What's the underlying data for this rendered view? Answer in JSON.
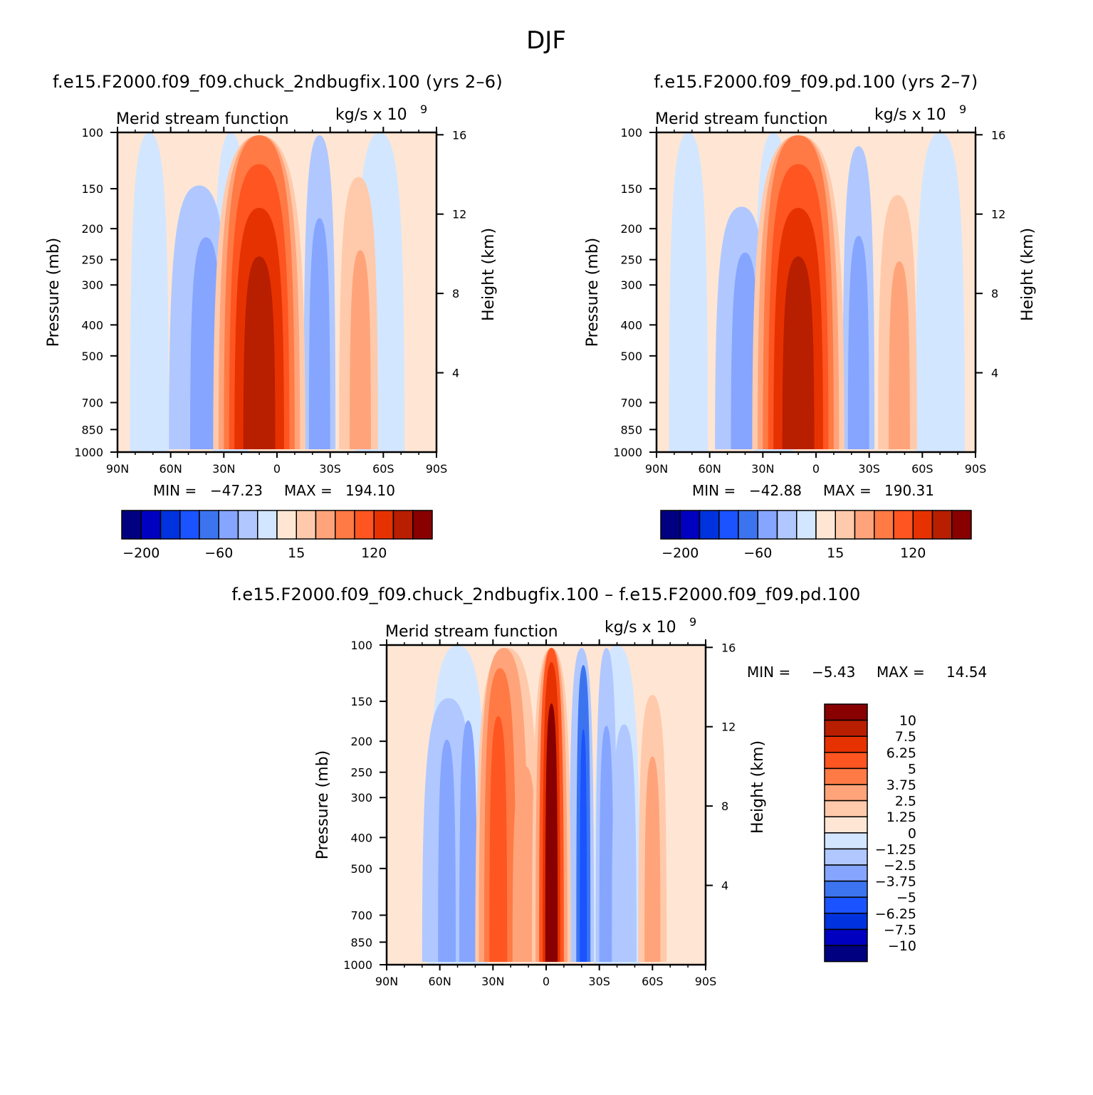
{
  "figure": {
    "title": "DJF"
  },
  "palette": [
    "#000080",
    "#0000c0",
    "#0033dd",
    "#1a53ff",
    "#3c74f0",
    "#85a5ff",
    "#b0c8ff",
    "#d3e6ff",
    "#ffe6d4",
    "#ffcaab",
    "#ffa47a",
    "#ff7a45",
    "#ff5520",
    "#e63200",
    "#b81e00",
    "#880000"
  ],
  "chart_data": [
    {
      "type": "heatmap",
      "case_title": "f.e15.F2000.f09_f09.chuck_2ndbugfix.100 (yrs 2–6)",
      "left_string": "Merid stream function",
      "units": "kg/s x 10",
      "units_exponent": "9",
      "ylabel": "Pressure (mb)",
      "right_ylabel": "Height (km)",
      "x_ticks": [
        "90N",
        "60N",
        "30N",
        "0",
        "30S",
        "60S",
        "90S"
      ],
      "y_ticks": [
        "100",
        "150",
        "200",
        "250",
        "300",
        "400",
        "500",
        "700",
        "850",
        "1000"
      ],
      "right_ticks": [
        "16",
        "12",
        "8",
        "4"
      ],
      "stats": {
        "min_label": "MIN =",
        "min": "−47.23",
        "max_label": "MAX =",
        "max": "194.10"
      },
      "colorbar": {
        "orientation": "horizontal",
        "labels": [
          "−200",
          "−60",
          "15",
          "120"
        ]
      }
    },
    {
      "type": "heatmap",
      "case_title": "f.e15.F2000.f09_f09.pd.100 (yrs 2–7)",
      "left_string": "Merid stream function",
      "units": "kg/s x 10",
      "units_exponent": "9",
      "ylabel": "Pressure (mb)",
      "right_ylabel": "Height (km)",
      "x_ticks": [
        "90N",
        "60N",
        "30N",
        "0",
        "30S",
        "60S",
        "90S"
      ],
      "y_ticks": [
        "100",
        "150",
        "200",
        "250",
        "300",
        "400",
        "500",
        "700",
        "850",
        "1000"
      ],
      "right_ticks": [
        "16",
        "12",
        "8",
        "4"
      ],
      "stats": {
        "min_label": "MIN =",
        "min": "−42.88",
        "max_label": "MAX =",
        "max": "190.31"
      },
      "colorbar": {
        "orientation": "horizontal",
        "labels": [
          "−200",
          "−60",
          "15",
          "120"
        ]
      }
    },
    {
      "type": "heatmap",
      "case_title": "f.e15.F2000.f09_f09.chuck_2ndbugfix.100 – f.e15.F2000.f09_f09.pd.100",
      "left_string": "Merid stream function",
      "units": "kg/s x 10",
      "units_exponent": "9",
      "ylabel": "Pressure (mb)",
      "right_ylabel": "Height (km)",
      "x_ticks": [
        "90N",
        "60N",
        "30N",
        "0",
        "30S",
        "60S",
        "90S"
      ],
      "y_ticks": [
        "100",
        "150",
        "200",
        "250",
        "300",
        "400",
        "500",
        "700",
        "850",
        "1000"
      ],
      "right_ticks": [
        "16",
        "12",
        "8",
        "4"
      ],
      "stats": {
        "min_label": "MIN =",
        "min": "−5.43",
        "max_label": "MAX =",
        "max": "14.54"
      },
      "colorbar": {
        "orientation": "vertical",
        "labels": [
          "10",
          "7.5",
          "6.25",
          "5",
          "3.75",
          "2.5",
          "1.25",
          "0",
          "−1.25",
          "−2.5",
          "−3.75",
          "−5",
          "−6.25",
          "−7.5",
          "−10"
        ]
      }
    }
  ]
}
